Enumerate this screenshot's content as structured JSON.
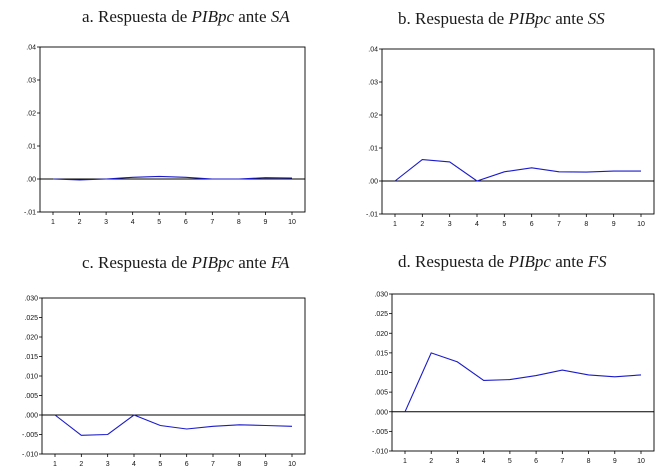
{
  "colors": {
    "line": "#1a1acc",
    "axis": "#000000",
    "zero": "#000000"
  },
  "chart_data": [
    {
      "type": "line",
      "title_prefix": "a. Respuesta de ",
      "title_var": "PIBpc",
      "title_mid": " ante ",
      "title_shock": "SA",
      "x": [
        1,
        2,
        3,
        4,
        5,
        6,
        7,
        8,
        9,
        10
      ],
      "series": [
        {
          "name": "SA",
          "values": [
            0.0,
            -0.0003,
            0.0,
            0.0005,
            0.0008,
            0.0005,
            0.0,
            0.0,
            0.0004,
            0.0003
          ]
        }
      ],
      "ylim": [
        -0.01,
        0.04
      ],
      "yticks": [
        ".04",
        ".03",
        ".02",
        ".01",
        ".00",
        "-.01"
      ],
      "ytick_values": [
        0.04,
        0.03,
        0.02,
        0.01,
        0.0,
        -0.01
      ],
      "xticks": [
        "1",
        "2",
        "3",
        "4",
        "5",
        "6",
        "7",
        "8",
        "9",
        "10"
      ]
    },
    {
      "type": "line",
      "title_prefix": "b. Respuesta de ",
      "title_var": "PIBpc",
      "title_mid": " ante ",
      "title_shock": "SS",
      "x": [
        1,
        2,
        3,
        4,
        5,
        6,
        7,
        8,
        9,
        10
      ],
      "series": [
        {
          "name": "SS",
          "values": [
            0.0,
            0.0065,
            0.0058,
            0.0,
            0.0028,
            0.004,
            0.0028,
            0.0027,
            0.003,
            0.003
          ]
        }
      ],
      "ylim": [
        -0.01,
        0.04
      ],
      "yticks": [
        ".04",
        ".03",
        ".02",
        ".01",
        ".00",
        "-.01"
      ],
      "ytick_values": [
        0.04,
        0.03,
        0.02,
        0.01,
        0.0,
        -0.01
      ],
      "xticks": [
        "1",
        "2",
        "3",
        "4",
        "5",
        "6",
        "7",
        "8",
        "9",
        "10"
      ]
    },
    {
      "type": "line",
      "title_prefix": "c. Respuesta de ",
      "title_var": "PIBpc",
      "title_mid": " ante ",
      "title_shock": "FA",
      "x": [
        1,
        2,
        3,
        4,
        5,
        6,
        7,
        8,
        9,
        10
      ],
      "series": [
        {
          "name": "FA",
          "values": [
            0.0,
            -0.0052,
            -0.005,
            0.0,
            -0.0027,
            -0.0036,
            -0.0029,
            -0.0025,
            -0.0027,
            -0.0029
          ]
        }
      ],
      "ylim": [
        -0.01,
        0.03
      ],
      "yticks": [
        ".030",
        ".025",
        ".020",
        ".015",
        ".010",
        ".005",
        ".000",
        "-.005",
        "-.010"
      ],
      "ytick_values": [
        0.03,
        0.025,
        0.02,
        0.015,
        0.01,
        0.005,
        0.0,
        -0.005,
        -0.01
      ],
      "xticks": [
        "1",
        "2",
        "3",
        "4",
        "5",
        "6",
        "7",
        "8",
        "9",
        "10"
      ]
    },
    {
      "type": "line",
      "title_prefix": "d. Respuesta de ",
      "title_var": "PIBpc",
      "title_mid": " ante ",
      "title_shock": "FS",
      "x": [
        1,
        2,
        3,
        4,
        5,
        6,
        7,
        8,
        9,
        10
      ],
      "series": [
        {
          "name": "FS",
          "values": [
            0.0,
            0.015,
            0.0127,
            0.008,
            0.0082,
            0.0092,
            0.0106,
            0.0094,
            0.0089,
            0.0094
          ]
        }
      ],
      "ylim": [
        -0.01,
        0.03
      ],
      "yticks": [
        ".030",
        ".025",
        ".020",
        ".015",
        ".010",
        ".005",
        ".000",
        "-.005",
        "-.010"
      ],
      "ytick_values": [
        0.03,
        0.025,
        0.02,
        0.015,
        0.01,
        0.005,
        0.0,
        -0.005,
        -0.01
      ],
      "xticks": [
        "1",
        "2",
        "3",
        "4",
        "5",
        "6",
        "7",
        "8",
        "9",
        "10"
      ]
    }
  ]
}
